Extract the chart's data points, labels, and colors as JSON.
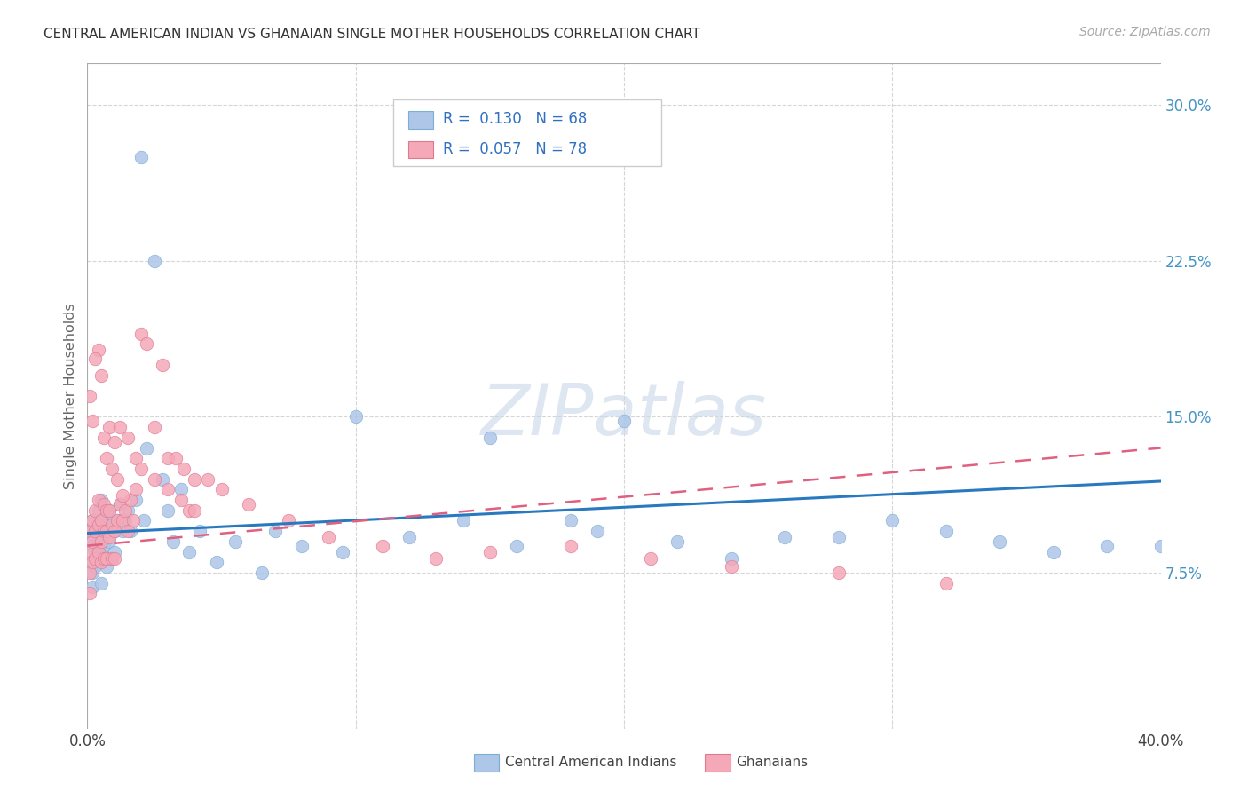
{
  "title": "CENTRAL AMERICAN INDIAN VS GHANAIAN SINGLE MOTHER HOUSEHOLDS CORRELATION CHART",
  "source": "Source: ZipAtlas.com",
  "ylabel": "Single Mother Households",
  "xlim": [
    0.0,
    0.4
  ],
  "ylim": [
    0.0,
    0.32
  ],
  "xticks": [
    0.0,
    0.1,
    0.2,
    0.3,
    0.4
  ],
  "xticklabels": [
    "0.0%",
    "",
    "",
    "",
    "40.0%"
  ],
  "yticks_right": [
    0.075,
    0.15,
    0.225,
    0.3
  ],
  "yticklabels_right": [
    "7.5%",
    "15.0%",
    "22.5%",
    "30.0%"
  ],
  "watermark": "ZIPatlas",
  "blue_scatter_color": "#aec6e8",
  "blue_edge_color": "#7bafd4",
  "pink_scatter_color": "#f4a8b8",
  "pink_edge_color": "#e07890",
  "blue_line_color": "#2979c0",
  "pink_line_color": "#e06080",
  "grid_color": "#cccccc",
  "blue_trend_x0": 0.0,
  "blue_trend_y0": 0.094,
  "blue_trend_x1": 0.4,
  "blue_trend_y1": 0.119,
  "pink_trend_x0": 0.0,
  "pink_trend_y0": 0.088,
  "pink_trend_x1": 0.4,
  "pink_trend_y1": 0.135,
  "blue_x": [
    0.001,
    0.001,
    0.001,
    0.002,
    0.002,
    0.002,
    0.002,
    0.003,
    0.003,
    0.003,
    0.004,
    0.004,
    0.004,
    0.005,
    0.005,
    0.005,
    0.005,
    0.006,
    0.006,
    0.007,
    0.007,
    0.008,
    0.008,
    0.009,
    0.009,
    0.01,
    0.01,
    0.011,
    0.012,
    0.013,
    0.014,
    0.015,
    0.016,
    0.018,
    0.02,
    0.021,
    0.022,
    0.025,
    0.028,
    0.03,
    0.032,
    0.035,
    0.038,
    0.042,
    0.048,
    0.055,
    0.065,
    0.08,
    0.095,
    0.12,
    0.14,
    0.16,
    0.19,
    0.22,
    0.26,
    0.3,
    0.34,
    0.38,
    0.2,
    0.24,
    0.28,
    0.32,
    0.36,
    0.4,
    0.18,
    0.15,
    0.1,
    0.07
  ],
  "blue_y": [
    0.095,
    0.09,
    0.08,
    0.1,
    0.088,
    0.075,
    0.068,
    0.095,
    0.085,
    0.078,
    0.105,
    0.09,
    0.082,
    0.11,
    0.098,
    0.085,
    0.07,
    0.1,
    0.088,
    0.095,
    0.078,
    0.105,
    0.09,
    0.1,
    0.082,
    0.095,
    0.085,
    0.1,
    0.108,
    0.095,
    0.1,
    0.105,
    0.095,
    0.11,
    0.275,
    0.1,
    0.135,
    0.225,
    0.12,
    0.105,
    0.09,
    0.115,
    0.085,
    0.095,
    0.08,
    0.09,
    0.075,
    0.088,
    0.085,
    0.092,
    0.1,
    0.088,
    0.095,
    0.09,
    0.092,
    0.1,
    0.09,
    0.088,
    0.148,
    0.082,
    0.092,
    0.095,
    0.085,
    0.088,
    0.1,
    0.14,
    0.15,
    0.095
  ],
  "pink_x": [
    0.001,
    0.001,
    0.001,
    0.001,
    0.002,
    0.002,
    0.002,
    0.003,
    0.003,
    0.003,
    0.004,
    0.004,
    0.004,
    0.005,
    0.005,
    0.005,
    0.006,
    0.006,
    0.006,
    0.007,
    0.007,
    0.007,
    0.008,
    0.008,
    0.009,
    0.009,
    0.01,
    0.01,
    0.011,
    0.012,
    0.013,
    0.014,
    0.015,
    0.016,
    0.017,
    0.018,
    0.02,
    0.022,
    0.025,
    0.028,
    0.03,
    0.033,
    0.036,
    0.04,
    0.045,
    0.05,
    0.06,
    0.075,
    0.09,
    0.11,
    0.13,
    0.15,
    0.18,
    0.21,
    0.24,
    0.28,
    0.32,
    0.005,
    0.004,
    0.003,
    0.002,
    0.001,
    0.008,
    0.006,
    0.01,
    0.012,
    0.015,
    0.018,
    0.02,
    0.025,
    0.03,
    0.035,
    0.038,
    0.04,
    0.007,
    0.009,
    0.011,
    0.013
  ],
  "pink_y": [
    0.095,
    0.085,
    0.075,
    0.065,
    0.1,
    0.09,
    0.08,
    0.105,
    0.095,
    0.082,
    0.11,
    0.098,
    0.085,
    0.1,
    0.09,
    0.08,
    0.108,
    0.095,
    0.082,
    0.105,
    0.095,
    0.082,
    0.105,
    0.092,
    0.098,
    0.082,
    0.095,
    0.082,
    0.1,
    0.108,
    0.1,
    0.105,
    0.095,
    0.11,
    0.1,
    0.115,
    0.19,
    0.185,
    0.145,
    0.175,
    0.13,
    0.13,
    0.125,
    0.12,
    0.12,
    0.115,
    0.108,
    0.1,
    0.092,
    0.088,
    0.082,
    0.085,
    0.088,
    0.082,
    0.078,
    0.075,
    0.07,
    0.17,
    0.182,
    0.178,
    0.148,
    0.16,
    0.145,
    0.14,
    0.138,
    0.145,
    0.14,
    0.13,
    0.125,
    0.12,
    0.115,
    0.11,
    0.105,
    0.105,
    0.13,
    0.125,
    0.12,
    0.112
  ]
}
